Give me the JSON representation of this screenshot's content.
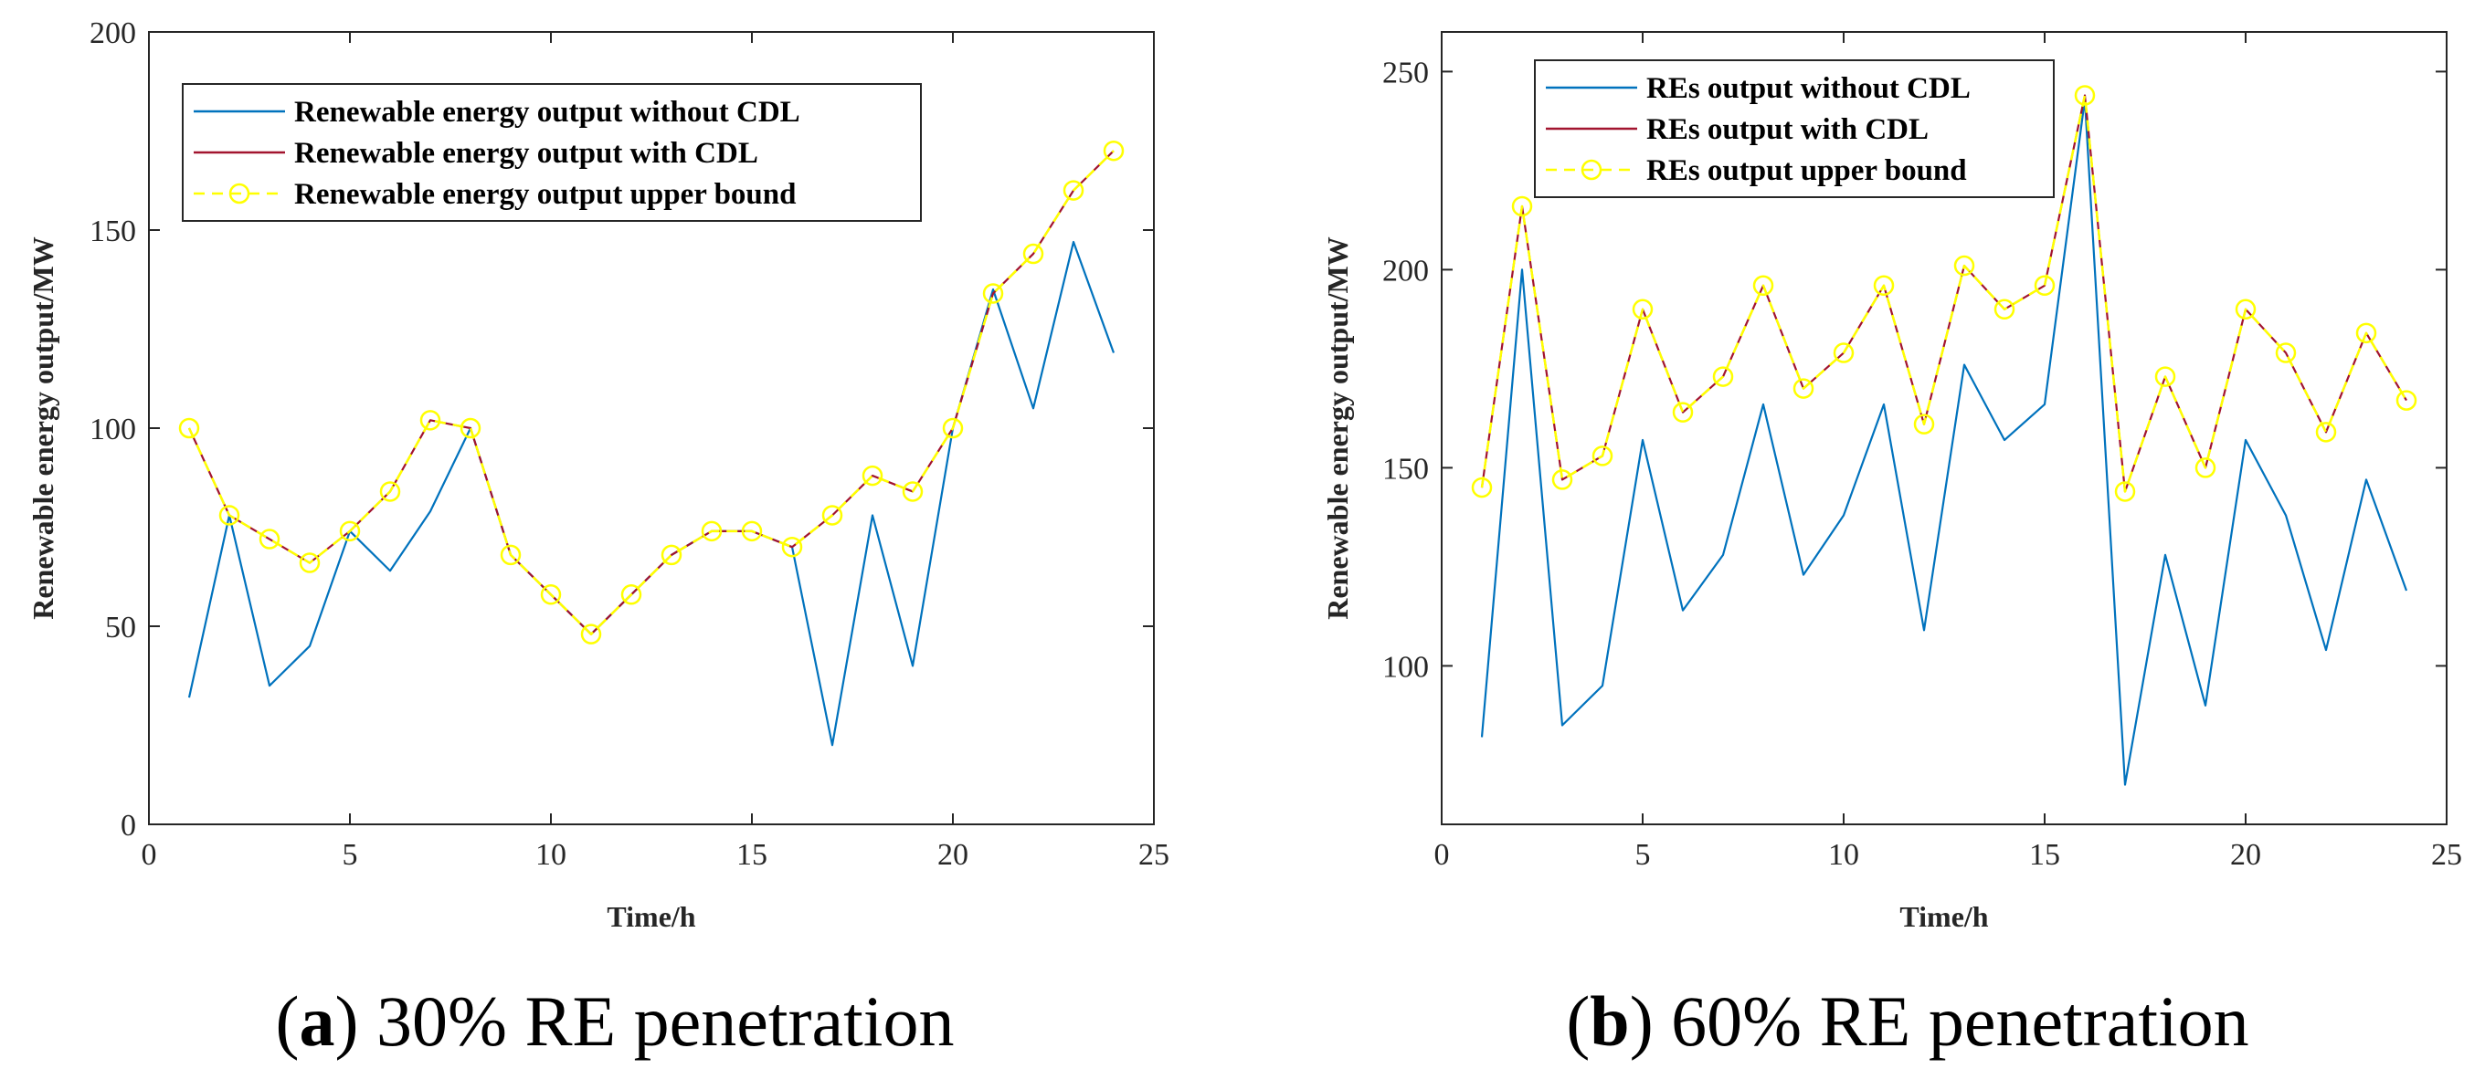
{
  "colors": {
    "without_cdl": "#0072BD",
    "with_cdl": "#A2142F",
    "upper_bound": "#FFFF00",
    "axis": "#262626"
  },
  "chart_data": [
    {
      "type": "line",
      "id": "a",
      "x": [
        1,
        2,
        3,
        4,
        5,
        6,
        7,
        8,
        9,
        10,
        11,
        12,
        13,
        14,
        15,
        16,
        17,
        18,
        19,
        20,
        21,
        22,
        23,
        24
      ],
      "xlim": [
        0,
        25
      ],
      "ylim": [
        0,
        200
      ],
      "xticks": [
        0,
        5,
        10,
        15,
        20,
        25
      ],
      "yticks": [
        0,
        50,
        100,
        150,
        200
      ],
      "xlabel": "Time/h",
      "ylabel": "Renewable energy output/MW",
      "legend_position": "top-left",
      "series": [
        {
          "name": "Renewable energy output without CDL",
          "style": "solid",
          "color_key": "without_cdl",
          "values": [
            32,
            78,
            35,
            45,
            74,
            64,
            79,
            100,
            68,
            58,
            48,
            58,
            68,
            74,
            74,
            70,
            20,
            78,
            40,
            100,
            135,
            105,
            147,
            119
          ]
        },
        {
          "name": "Renewable energy output with CDL",
          "style": "solid",
          "color_key": "with_cdl",
          "values": [
            100,
            78,
            72,
            66,
            74,
            84,
            102,
            100,
            68,
            58,
            48,
            58,
            68,
            74,
            74,
            70,
            78,
            88,
            84,
            100,
            134,
            144,
            160,
            170
          ]
        },
        {
          "name": "Renewable energy output upper bound",
          "style": "dashed-circle",
          "color_key": "upper_bound",
          "values": [
            100,
            78,
            72,
            66,
            74,
            84,
            102,
            100,
            68,
            58,
            48,
            58,
            68,
            74,
            74,
            70,
            78,
            88,
            84,
            100,
            134,
            144,
            160,
            170
          ]
        }
      ],
      "caption_label": "a",
      "caption_text": "30% RE penetration"
    },
    {
      "type": "line",
      "id": "b",
      "x": [
        1,
        2,
        3,
        4,
        5,
        6,
        7,
        8,
        9,
        10,
        11,
        12,
        13,
        14,
        15,
        16,
        17,
        18,
        19,
        20,
        21,
        22,
        23,
        24
      ],
      "xlim": [
        0,
        25
      ],
      "ylim": [
        60,
        260
      ],
      "xticks": [
        0,
        5,
        10,
        15,
        20,
        25
      ],
      "yticks": [
        100,
        150,
        200,
        250
      ],
      "xlabel": "Time/h",
      "ylabel": "Renewable energy output/MW",
      "legend_position": "top-left",
      "series": [
        {
          "name": "REs output without CDL",
          "style": "solid",
          "color_key": "without_cdl",
          "values": [
            82,
            200,
            85,
            95,
            157,
            114,
            128,
            166,
            123,
            138,
            166,
            109,
            176,
            157,
            166,
            243,
            70,
            128,
            90,
            157,
            138,
            104,
            147,
            119
          ]
        },
        {
          "name": "REs output with CDL",
          "style": "solid",
          "color_key": "with_cdl",
          "values": [
            145,
            216,
            147,
            153,
            190,
            164,
            173,
            196,
            170,
            179,
            196,
            161,
            201,
            190,
            196,
            244,
            144,
            173,
            150,
            190,
            179,
            159,
            184,
            167
          ]
        },
        {
          "name": "REs output upper bound",
          "style": "dashed-circle",
          "color_key": "upper_bound",
          "values": [
            145,
            216,
            147,
            153,
            190,
            164,
            173,
            196,
            170,
            179,
            196,
            161,
            201,
            190,
            196,
            244,
            144,
            173,
            150,
            190,
            179,
            159,
            184,
            167
          ]
        }
      ],
      "caption_label": "b",
      "caption_text": "60% RE penetration"
    }
  ]
}
